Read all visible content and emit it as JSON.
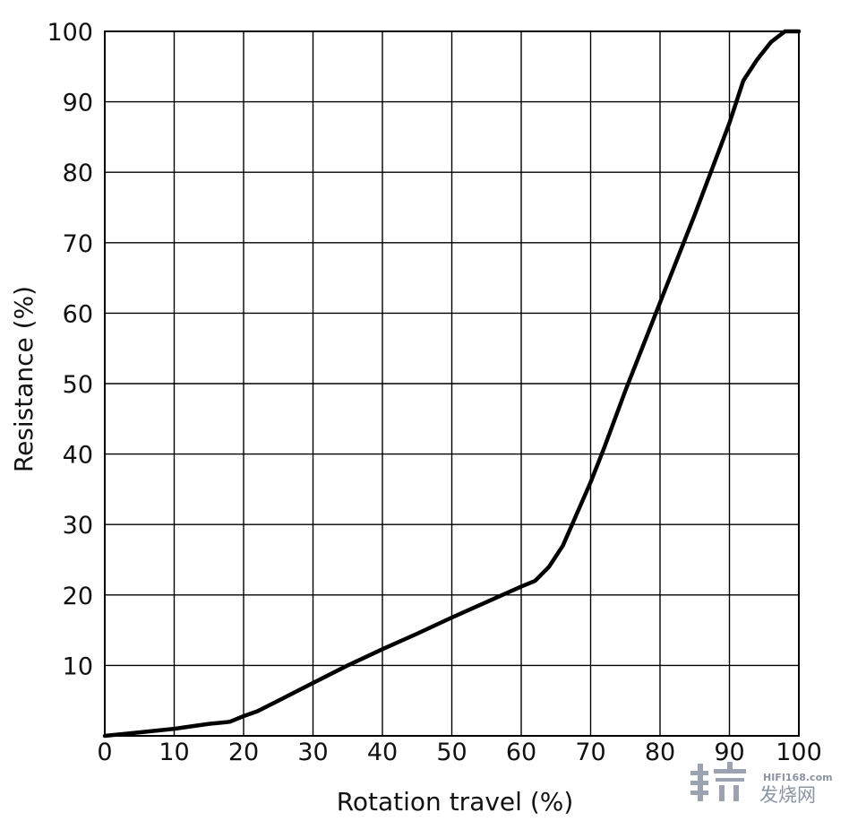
{
  "chart_data": {
    "type": "line",
    "title": "",
    "xlabel": "Rotation travel (%)",
    "ylabel": "Resistance (%)",
    "xlim": [
      0,
      100
    ],
    "ylim": [
      0,
      100
    ],
    "x_ticks": [
      "0",
      "10",
      "20",
      "30",
      "40",
      "50",
      "60",
      "70",
      "80",
      "90",
      "100"
    ],
    "y_ticks": [
      "10",
      "20",
      "30",
      "40",
      "50",
      "60",
      "70",
      "80",
      "90",
      "100"
    ],
    "grid": true,
    "series": [
      {
        "x": [
          0,
          5,
          10,
          15,
          18,
          20,
          22,
          25,
          30,
          35,
          40,
          45,
          50,
          55,
          60,
          62,
          64,
          66,
          68,
          70,
          72,
          75,
          80,
          85,
          90,
          92,
          94,
          96,
          98,
          100
        ],
        "y": [
          0,
          0.5,
          1.0,
          1.7,
          2.0,
          2.8,
          3.5,
          5.0,
          7.5,
          10.0,
          12.3,
          14.5,
          16.8,
          19.0,
          21.2,
          22.0,
          24.0,
          27.0,
          31.5,
          36.0,
          41.0,
          49.0,
          61.5,
          74.0,
          87.0,
          93.0,
          96.0,
          98.5,
          100.0,
          100.0
        ]
      }
    ]
  },
  "watermark": {
    "site": "HIFI168.com",
    "text": "发烧网"
  },
  "colors": {
    "line": "#000000",
    "grid": "#000000",
    "watermark": "#8a94a3"
  }
}
